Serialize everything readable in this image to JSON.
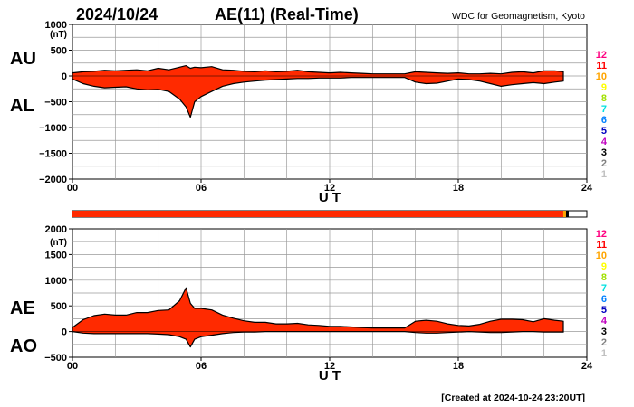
{
  "header": {
    "date": "2024/10/24",
    "title": "AE(11) (Real-Time)",
    "source": "WDC for Geomagnetism, Kyoto"
  },
  "footer": {
    "created": "[Created at 2024-10-24 23:20UT]"
  },
  "level_legend": {
    "labels": [
      "12",
      "11",
      "10",
      "9",
      "8",
      "7",
      "6",
      "5",
      "4",
      "3",
      "2",
      "1"
    ],
    "colors": [
      "#ff0080",
      "#ff0000",
      "#ffa500",
      "#ffff00",
      "#a0e000",
      "#00e0e0",
      "#0080ff",
      "#0000c0",
      "#c000c0",
      "#000000",
      "#808080",
      "#c0c0c0"
    ]
  },
  "coverage_bar": {
    "filled_until_hour": 22.9,
    "main_color": "#ff2a00",
    "tail_colors": [
      "#ffa500",
      "#000000"
    ]
  },
  "chart_data": [
    {
      "type": "area",
      "name": "AU-AL",
      "series_labels": [
        "AU",
        "AL"
      ],
      "ylabel": "(nT)",
      "xlabel": "U T",
      "ylim": [
        -2000,
        1000
      ],
      "yticks": [
        1000,
        500,
        0,
        -500,
        -1000,
        -1500,
        -2000
      ],
      "ytick_labels": [
        "1000",
        "500",
        "0",
        "−500",
        "−1000",
        "−1500",
        "−2000"
      ],
      "xlim": [
        0,
        24
      ],
      "xticks": [
        0,
        6,
        12,
        18,
        24
      ],
      "xtick_labels": [
        "00",
        "06",
        "12",
        "18",
        "24"
      ],
      "grid": true,
      "fill_color": "#ff2a00",
      "x": [
        0,
        0.5,
        1,
        1.5,
        2,
        2.5,
        3,
        3.5,
        4,
        4.5,
        5,
        5.3,
        5.5,
        5.7,
        6,
        6.5,
        7,
        7.5,
        8,
        8.5,
        9,
        9.5,
        10,
        10.5,
        11,
        11.5,
        12,
        12.5,
        13,
        13.5,
        14,
        14.5,
        15,
        15.5,
        16,
        16.5,
        17,
        17.5,
        18,
        18.5,
        19,
        19.5,
        20,
        20.5,
        21,
        21.5,
        22,
        22.5,
        22.9
      ],
      "upper": [
        60,
        80,
        90,
        110,
        100,
        110,
        120,
        100,
        150,
        120,
        170,
        200,
        150,
        170,
        160,
        180,
        120,
        110,
        90,
        80,
        100,
        80,
        90,
        110,
        80,
        70,
        60,
        70,
        60,
        50,
        40,
        40,
        40,
        40,
        80,
        70,
        60,
        50,
        60,
        40,
        40,
        50,
        40,
        70,
        80,
        60,
        100,
        100,
        80
      ],
      "lower": [
        -60,
        -150,
        -200,
        -230,
        -220,
        -210,
        -250,
        -270,
        -260,
        -300,
        -450,
        -600,
        -800,
        -500,
        -400,
        -300,
        -200,
        -150,
        -120,
        -100,
        -80,
        -70,
        -60,
        -50,
        -50,
        -40,
        -40,
        -40,
        -30,
        -30,
        -30,
        -30,
        -30,
        -30,
        -120,
        -150,
        -140,
        -100,
        -60,
        -70,
        -100,
        -150,
        -200,
        -170,
        -150,
        -130,
        -150,
        -120,
        -100
      ]
    },
    {
      "type": "area",
      "name": "AE-AO",
      "series_labels": [
        "AE",
        "AO"
      ],
      "ylabel": "(nT)",
      "xlabel": "U T",
      "ylim": [
        -500,
        2000
      ],
      "yticks": [
        2000,
        1500,
        1000,
        500,
        0,
        -500
      ],
      "ytick_labels": [
        "2000",
        "1500",
        "1000",
        "500",
        "0",
        "−500"
      ],
      "xlim": [
        0,
        24
      ],
      "xticks": [
        0,
        6,
        12,
        18,
        24
      ],
      "xtick_labels": [
        "00",
        "06",
        "12",
        "18",
        "24"
      ],
      "grid": true,
      "fill_color": "#ff2a00",
      "x": [
        0,
        0.5,
        1,
        1.5,
        2,
        2.5,
        3,
        3.5,
        4,
        4.5,
        5,
        5.3,
        5.5,
        5.7,
        6,
        6.5,
        7,
        7.5,
        8,
        8.5,
        9,
        9.5,
        10,
        10.5,
        11,
        11.5,
        12,
        12.5,
        13,
        13.5,
        14,
        14.5,
        15,
        15.5,
        16,
        16.5,
        17,
        17.5,
        18,
        18.5,
        19,
        19.5,
        20,
        20.5,
        21,
        21.5,
        22,
        22.5,
        22.9
      ],
      "upper": [
        80,
        230,
        310,
        340,
        320,
        320,
        370,
        370,
        410,
        420,
        600,
        850,
        550,
        450,
        450,
        420,
        320,
        260,
        210,
        180,
        180,
        150,
        150,
        160,
        130,
        120,
        100,
        100,
        90,
        80,
        70,
        70,
        70,
        70,
        200,
        220,
        200,
        150,
        120,
        110,
        140,
        200,
        240,
        240,
        230,
        190,
        250,
        220,
        200
      ],
      "lower": [
        0,
        -30,
        -40,
        -40,
        -40,
        -40,
        -40,
        -40,
        -50,
        -60,
        -100,
        -150,
        -300,
        -150,
        -100,
        -70,
        -40,
        -20,
        -10,
        -10,
        0,
        0,
        0,
        0,
        0,
        0,
        0,
        0,
        0,
        0,
        0,
        0,
        0,
        0,
        -20,
        -30,
        -30,
        -20,
        -10,
        0,
        -10,
        -20,
        -20,
        -10,
        0,
        0,
        -10,
        -10,
        -10
      ]
    }
  ]
}
